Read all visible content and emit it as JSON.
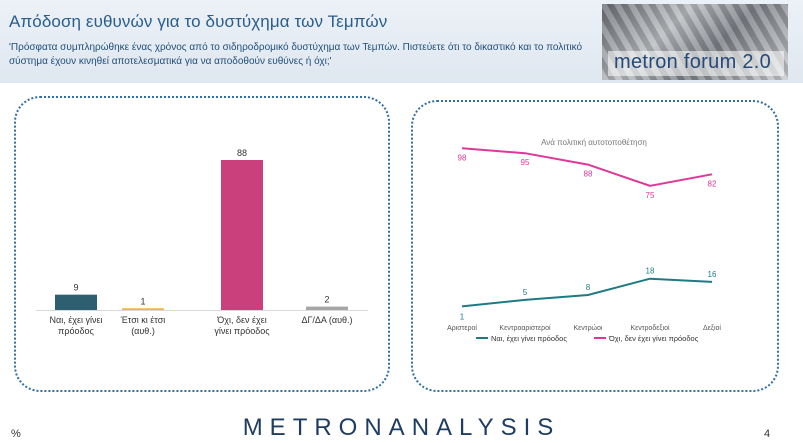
{
  "header": {
    "title": "Απόδοση ευθυνών για το δυστύχημα των Τεμπών",
    "subtitle": "'Πρόσφατα συμπληρώθηκε ένας χρόνος από το σιδηροδρομικό δυστύχημα των Τεμπών. Πιστεύετε ότι το δικαστικό και το πολιτικό σύστημα έχουν κινηθεί αποτελεσματικά για να αποδοθούν ευθύνες ή όχι;'",
    "logo_text": "metron forum 2.0"
  },
  "footer": {
    "unit": "%",
    "brand": "METRONANALYSIS",
    "page": "4"
  },
  "chart_data": [
    {
      "type": "bar",
      "categories": [
        "Ναι, έχει γίνει πρόοδος",
        "Έτσι κι έτσι (αυθ.)",
        "Όχι, δεν έχει γίνει πρόοδος",
        "ΔΓ/ΔΑ (αυθ.)"
      ],
      "values": [
        9,
        1,
        88,
        2
      ],
      "colors": [
        "#2e5f70",
        "#f0b43a",
        "#c9407d",
        "#a6a6a6"
      ],
      "ylim": [
        0,
        88
      ]
    },
    {
      "type": "line",
      "title": "Ανά πολιτική αυτοτοποθέτηση",
      "categories": [
        "Αριστεροί",
        "Κεντροαριστεροί",
        "Κεντρώοι",
        "Κεντροδεξιοί",
        "Δεξιοί"
      ],
      "series": [
        {
          "name": "Ναι, έχει γίνει πρόοδος",
          "values": [
            1,
            5,
            8,
            18,
            16
          ],
          "color": "#1d7b84"
        },
        {
          "name": "Όχι, δεν έχει γίνει πρόοδος",
          "values": [
            98,
            95,
            88,
            75,
            82
          ],
          "color": "#e0379a"
        }
      ],
      "ylim": [
        0,
        100
      ],
      "legend": "bottom"
    }
  ]
}
